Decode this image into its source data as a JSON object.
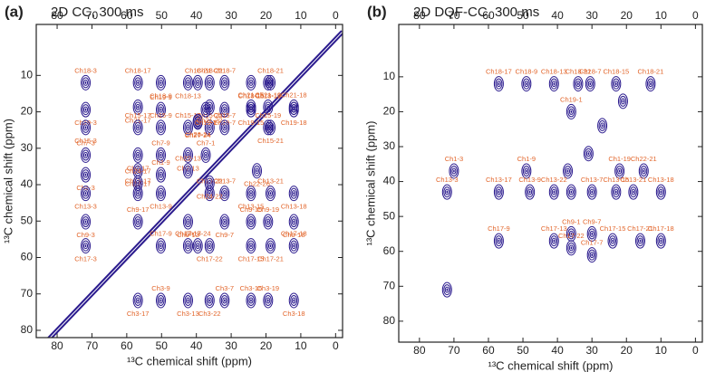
{
  "chart_data": [
    {
      "type": "contour",
      "panel": "(a)",
      "title": "2D CC, 300 ms",
      "x_label": "¹³C chemical shift (ppm)",
      "y_label": "¹³C chemical shift (ppm)",
      "xlim": [
        86,
        -2
      ],
      "ylim": [
        -4,
        82
      ],
      "xticks": [
        80,
        70,
        60,
        50,
        40,
        30,
        20,
        10,
        0
      ],
      "yticks": [
        10,
        20,
        30,
        40,
        50,
        60,
        70,
        80
      ],
      "diagonal": true,
      "color": "#2b1b8e",
      "label_color": "#e2652a",
      "peaks": {
        "x": [
          56.8,
          50.2,
          71.8,
          56.8,
          50.2,
          71.8,
          56.8,
          71.8,
          50.2,
          39.6,
          50.2,
          56.8,
          71.8,
          42.4,
          42.4,
          71.8,
          50.2,
          56.8,
          42.4,
          71.8,
          56.8,
          50.2,
          56.8,
          71.8,
          56.8,
          71.8,
          50.2,
          56.8,
          50.2,
          42.4,
          42.4,
          42.4,
          39.6,
          36.2,
          31.9,
          31.9,
          24.3,
          36.2,
          19.4,
          12.0,
          19.4,
          24.3,
          24.3,
          18.7,
          12.0,
          12.0,
          31.9,
          24.3,
          18.7,
          12.0,
          37.3,
          22.6,
          36.2,
          39.6,
          19.4,
          42.4,
          39.6,
          36.2,
          36.2,
          37.3,
          31.9,
          31.9,
          31.9,
          24.3,
          24.3,
          19.4,
          18.7,
          24.3,
          12.0,
          12.0,
          19.4,
          18.7,
          36.2,
          36.2
        ],
        "y": [
          12.0,
          12.0,
          12.0,
          18.7,
          19.4,
          19.4,
          24.3,
          24.3,
          24.3,
          22.6,
          31.9,
          31.9,
          31.9,
          31.9,
          24.3,
          37.3,
          37.3,
          36.2,
          36.2,
          42.4,
          42.4,
          42.4,
          39.6,
          50.2,
          50.2,
          56.8,
          56.8,
          71.8,
          71.8,
          50.2,
          56.8,
          71.8,
          56.8,
          56.8,
          71.8,
          50.2,
          71.8,
          71.8,
          71.8,
          71.8,
          50.2,
          56.8,
          50.2,
          56.8,
          56.8,
          50.2,
          42.4,
          42.4,
          42.4,
          42.4,
          31.9,
          36.2,
          24.3,
          22.8,
          18.7,
          12.0,
          12.0,
          18.7,
          12.0,
          19.4,
          12.0,
          19.4,
          24.3,
          12.0,
          18.7,
          12.0,
          12.0,
          19.4,
          18.7,
          19.4,
          24.3,
          24.3,
          42.4,
          39.6
        ],
        "labels": [
          "Ch18-17",
          "Ch18-9",
          "Ch18-3",
          "Ch21-17",
          "Ch19-9",
          "Ch19-3",
          "Ch15-17",
          "Ch15-3",
          "Ch15-9",
          "Ch26-24",
          "Ch7-9",
          "Ch7-17",
          "Ch7-3",
          "Ch7-13",
          "Ch15-13",
          "Ch1-3",
          "Ch1-9",
          "Ch22-17",
          "Ch22-13",
          "Ch13-3",
          "Ch13-17",
          "Ch13-9",
          "Ch24-17",
          "Ch9-3",
          "Ch9-17",
          "Ch17-3",
          "Ch17-9",
          "Ch3-17",
          "Ch3-9",
          "Ch9-13",
          "Ch17-13",
          "Ch3-13",
          "Ch17-24",
          "Ch17-22",
          "Ch3-7",
          "Ch9-7",
          "Ch3-15",
          "Ch3-22",
          "Ch3-19",
          "Ch3-18",
          "Ch9-19",
          "Ch17-15",
          "Ch9-15",
          "Ch17-21",
          "Ch17-18",
          "Ch9-18",
          "Ch13-7",
          "Ch13-15",
          "Ch13-21",
          "Ch13-18",
          "Ch7-1",
          "Ch22-26",
          "Ch15-22",
          "Ch27-24",
          "Ch21-19",
          "Ch18-13",
          "Ch18-24",
          "Ch21-22",
          "Ch18-22",
          "Ch19-1",
          "Ch18-7",
          "Ch19-7",
          "Ch15-7",
          "Ch18-15",
          "Ch21-15",
          "Ch18-19",
          "Ch18-21",
          "Ch19-15",
          "Ch21-18",
          "Ch19-18",
          "Ch15-19",
          "Ch15-21",
          "Ch13-22",
          "Ch24-22"
        ]
      }
    },
    {
      "type": "contour",
      "panel": "(b)",
      "title": "2D DQF-CC, 300 ms",
      "x_label": "¹³C chemical shift (ppm)",
      "y_label": "¹³C chemical shift (ppm)",
      "xlim": [
        86,
        -2
      ],
      "ylim": [
        -5,
        86
      ],
      "xticks": [
        80,
        70,
        60,
        50,
        40,
        30,
        20,
        10,
        0
      ],
      "yticks": [
        10,
        20,
        30,
        40,
        50,
        60,
        70,
        80
      ],
      "diagonal": false,
      "color": "#2b1b8e",
      "label_color": "#e2652a",
      "peaks": {
        "x": [
          57,
          49,
          41,
          34,
          30.5,
          23,
          13,
          36,
          21,
          27,
          31,
          37,
          70,
          49,
          22,
          15,
          72,
          57,
          48,
          41,
          36,
          30,
          23,
          18,
          10,
          57,
          41,
          36,
          36,
          30,
          30,
          24,
          16,
          10,
          72
        ],
        "y": [
          12,
          12,
          12,
          12,
          12,
          12,
          12,
          20,
          17,
          24,
          32,
          37,
          37,
          37,
          37,
          37,
          43,
          43,
          43,
          43,
          43,
          43,
          43,
          43,
          43,
          57,
          57,
          55,
          59,
          55,
          61,
          57,
          57,
          57,
          71
        ],
        "labels": [
          "Ch18-17",
          "Ch18-9",
          "Ch18-13",
          "Ch18-22",
          "Ch18-7",
          "Ch18-15",
          "Ch18-21",
          "Ch19-1",
          null,
          null,
          null,
          null,
          "Ch1-3",
          "Ch1-9",
          "Ch1-19",
          "Ch22-21",
          "Ch13-3",
          "Ch13-17",
          "Ch13-9",
          "Ch13-22",
          null,
          "Ch13-7",
          "Ch13-15",
          "Ch13-21",
          "Ch13-18",
          "Ch17-9",
          "Ch17-13",
          "Ch9-1",
          "Ch17-22",
          "Ch9-7",
          "Ch17-7",
          "Ch17-15",
          "Ch17-21",
          "Ch17-18",
          null
        ]
      }
    }
  ]
}
